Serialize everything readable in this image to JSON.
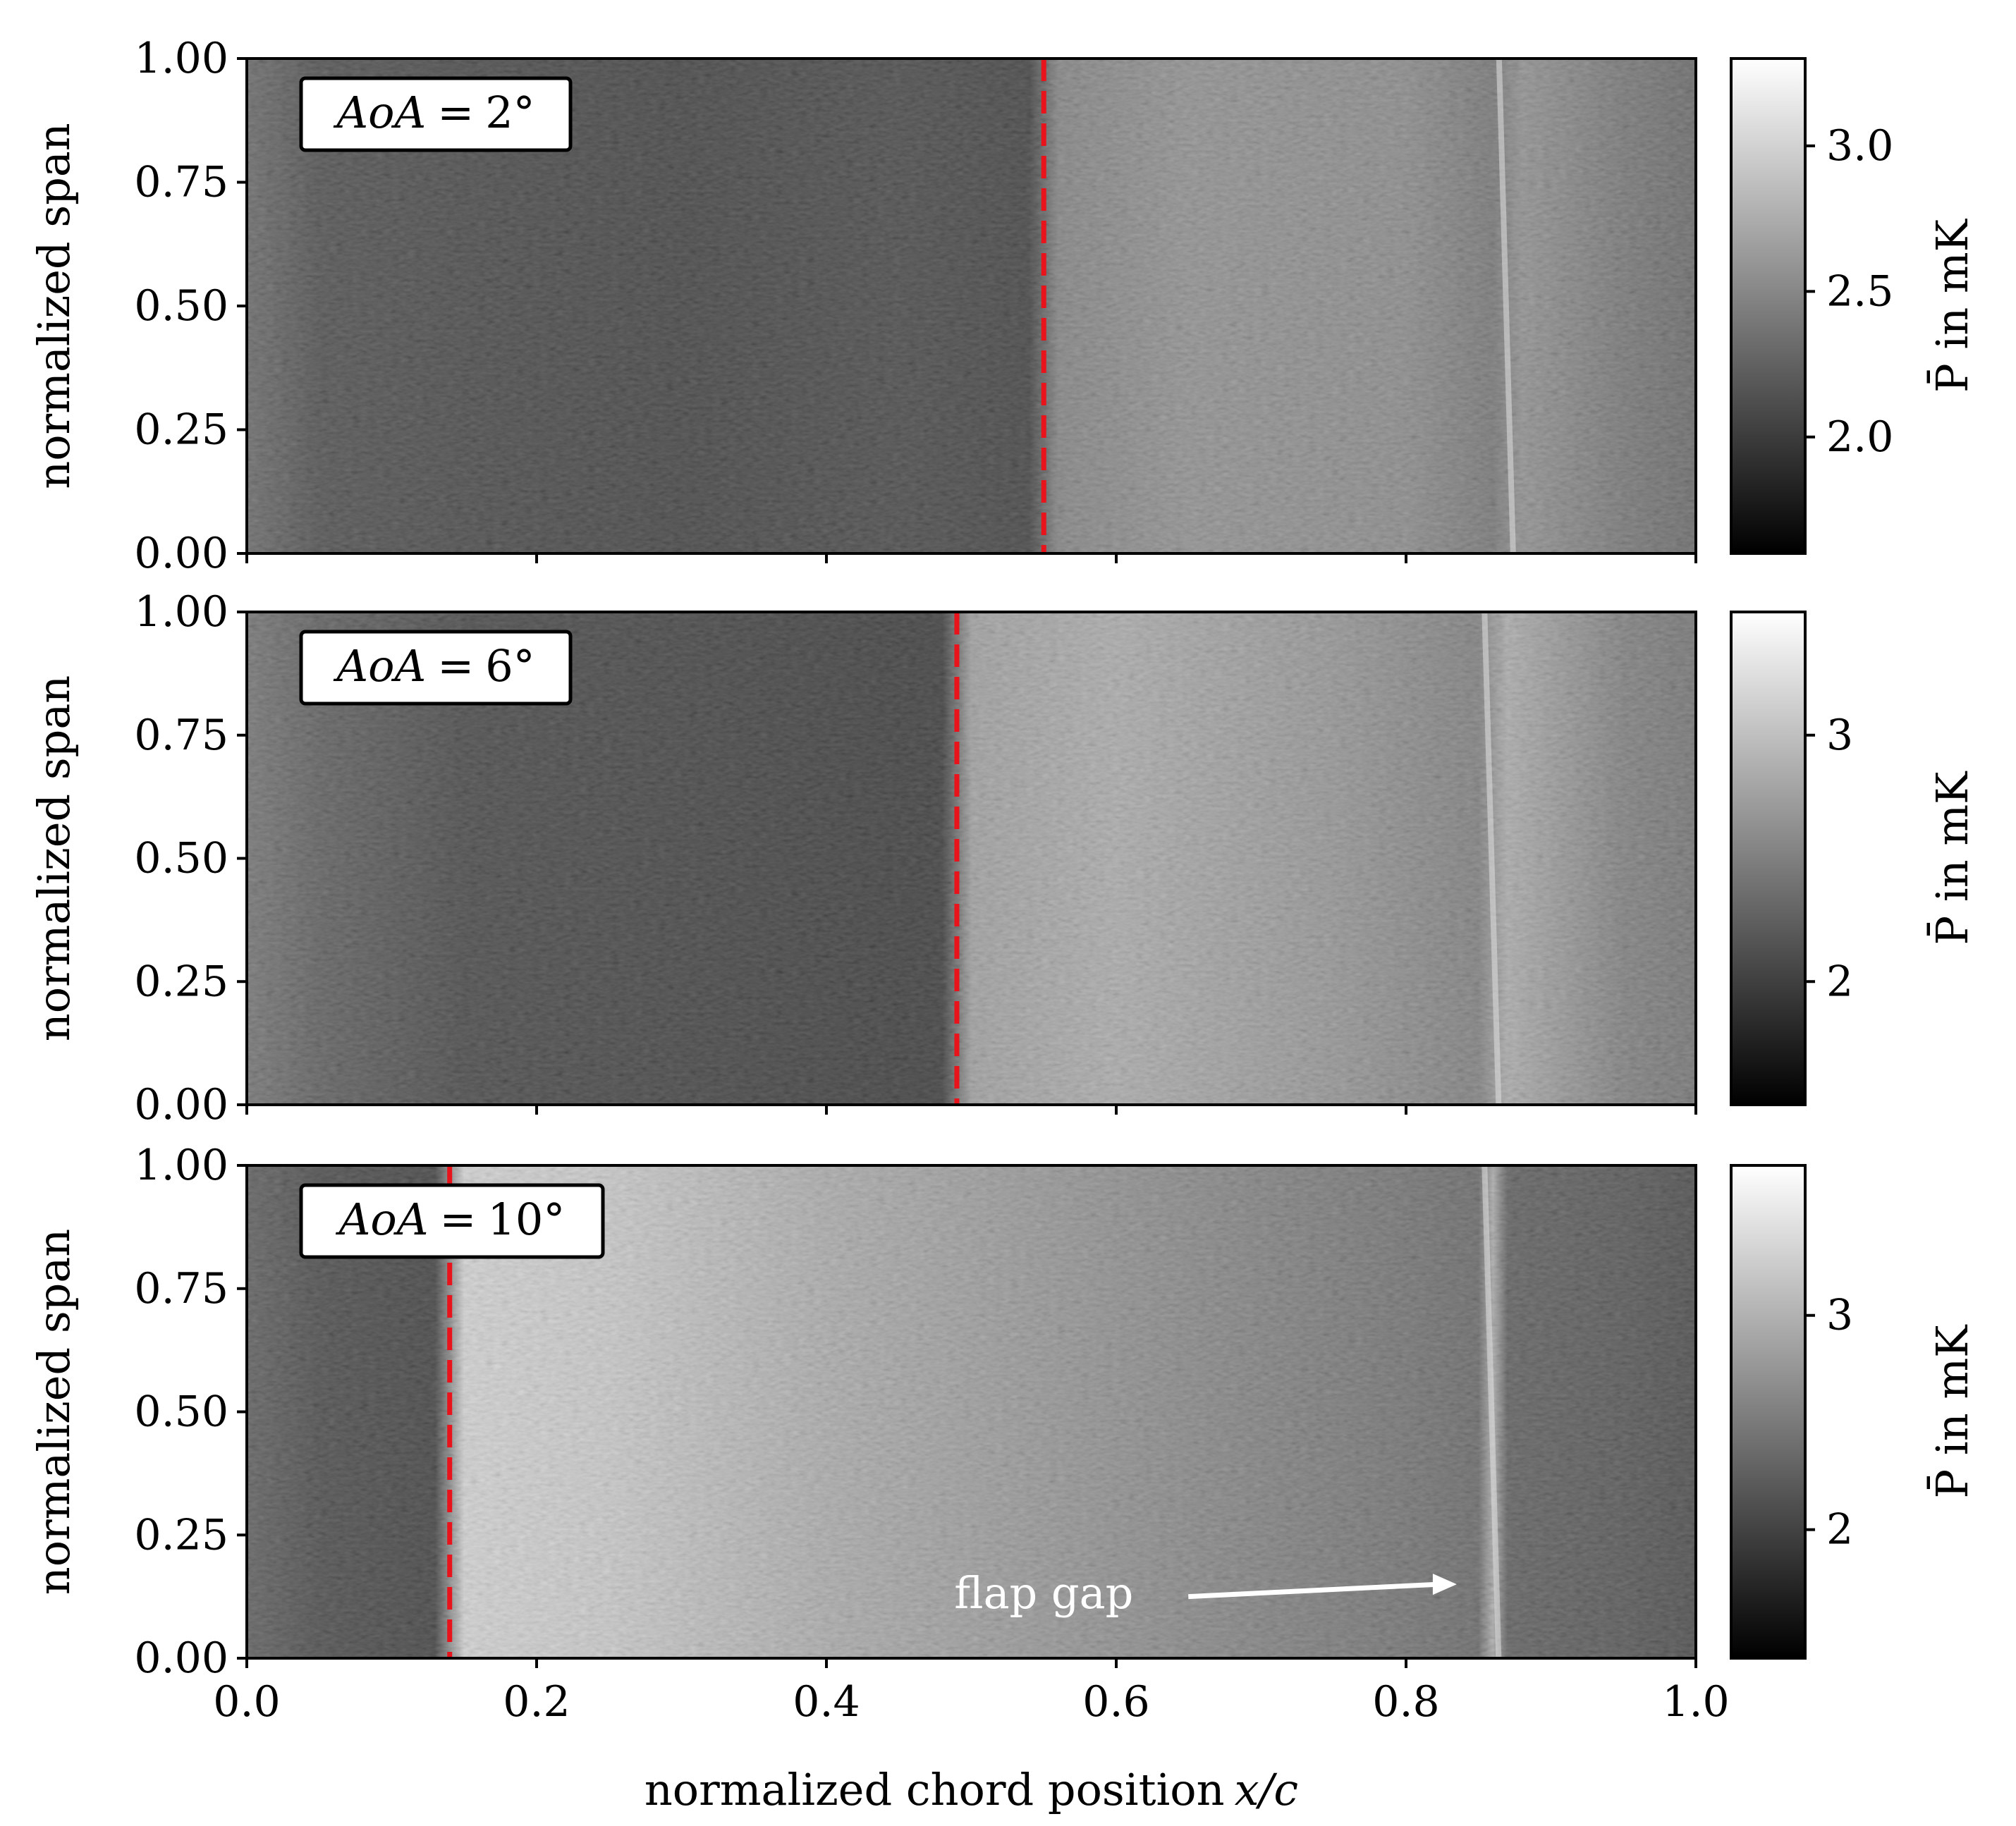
{
  "chart_data": [
    {
      "type": "heatmap",
      "colormap": "gray",
      "annotation": "AoA = 2°",
      "annotation_parts": [
        "AoA",
        "=",
        "2°"
      ],
      "ylabel": "normalized span",
      "xlabel": "",
      "xlim": [
        0.0,
        1.0
      ],
      "ylim": [
        0.0,
        1.0
      ],
      "yticks": [
        "0.00",
        "0.25",
        "0.50",
        "0.75",
        "1.00"
      ],
      "yticks_values": [
        0.0,
        0.25,
        0.5,
        0.75,
        1.0
      ],
      "xticks_values": [
        0.0,
        0.2,
        0.4,
        0.6,
        0.8,
        1.0
      ],
      "xtick_labels_shown": false,
      "transition_x": 0.55,
      "transition_line": {
        "style": "dashed",
        "color": "#e8131b"
      },
      "flap_gap_x": 0.87,
      "intensity_profile": {
        "x": [
          0.0,
          0.05,
          0.15,
          0.3,
          0.45,
          0.54,
          0.56,
          0.65,
          0.8,
          0.86,
          0.88,
          0.95,
          1.0
        ],
        "value": [
          2.2,
          2.0,
          1.95,
          1.9,
          1.95,
          1.9,
          2.4,
          2.5,
          2.45,
          2.3,
          2.5,
          2.3,
          2.2
        ]
      },
      "colorbar": {
        "label": "P̄ in mK",
        "ticks": [
          "2.0",
          "2.5",
          "3.0"
        ],
        "tick_values": [
          2.0,
          2.5,
          3.0
        ],
        "range": [
          1.6,
          3.3
        ]
      }
    },
    {
      "type": "heatmap",
      "colormap": "gray",
      "annotation": "AoA = 6°",
      "annotation_parts": [
        "AoA",
        "=",
        "6°"
      ],
      "ylabel": "normalized span",
      "xlabel": "",
      "xlim": [
        0.0,
        1.0
      ],
      "ylim": [
        0.0,
        1.0
      ],
      "yticks": [
        "0.00",
        "0.25",
        "0.50",
        "0.75",
        "1.00"
      ],
      "yticks_values": [
        0.0,
        0.25,
        0.5,
        0.75,
        1.0
      ],
      "xticks_values": [
        0.0,
        0.2,
        0.4,
        0.6,
        0.8,
        1.0
      ],
      "xtick_labels_shown": false,
      "transition_x": 0.49,
      "transition_line": {
        "style": "dashed",
        "color": "#e8131b"
      },
      "flap_gap_x": 0.86,
      "intensity_profile": {
        "x": [
          0.0,
          0.05,
          0.15,
          0.3,
          0.45,
          0.48,
          0.5,
          0.6,
          0.75,
          0.85,
          0.87,
          0.95,
          1.0
        ],
        "value": [
          2.3,
          2.1,
          1.9,
          1.85,
          1.8,
          1.8,
          2.7,
          2.8,
          2.6,
          2.4,
          2.8,
          2.4,
          2.3
        ]
      },
      "colorbar": {
        "label": "P̄ in mK",
        "ticks": [
          "2",
          "3"
        ],
        "tick_values": [
          2,
          3
        ],
        "range": [
          1.5,
          3.5
        ]
      }
    },
    {
      "type": "heatmap",
      "colormap": "gray",
      "annotation": "AoA = 10°",
      "annotation_parts": [
        "AoA",
        "=",
        "10°"
      ],
      "ylabel": "normalized span",
      "xlabel": "normalized chord position x/c",
      "xlabel_parts": [
        "normalized chord position",
        "x/c"
      ],
      "xlim": [
        0.0,
        1.0
      ],
      "ylim": [
        0.0,
        1.0
      ],
      "xticks": [
        "0.0",
        "0.2",
        "0.4",
        "0.6",
        "0.8",
        "1.0"
      ],
      "xticks_values": [
        0.0,
        0.2,
        0.4,
        0.6,
        0.8,
        1.0
      ],
      "yticks": [
        "0.00",
        "0.25",
        "0.50",
        "0.75",
        "1.00"
      ],
      "yticks_values": [
        0.0,
        0.25,
        0.5,
        0.75,
        1.0
      ],
      "transition_x": 0.14,
      "transition_line": {
        "style": "dashed",
        "color": "#e8131b"
      },
      "flap_gap_x": 0.86,
      "intensity_profile": {
        "x": [
          0.0,
          0.05,
          0.13,
          0.15,
          0.25,
          0.4,
          0.6,
          0.8,
          0.85,
          0.86,
          0.87,
          0.95,
          1.0
        ],
        "value": [
          2.1,
          1.9,
          1.8,
          3.3,
          3.2,
          2.9,
          2.6,
          2.3,
          2.2,
          2.9,
          2.1,
          2.0,
          1.9
        ]
      },
      "text_annotation": {
        "text": "flap gap",
        "color": "#ffffff",
        "x": 0.55,
        "y": 0.13,
        "arrow_to": [
          0.835,
          0.15
        ]
      },
      "colorbar": {
        "label": "P̄ in mK",
        "ticks": [
          "2",
          "3"
        ],
        "tick_values": [
          2,
          3
        ],
        "range": [
          1.4,
          3.7
        ]
      }
    }
  ]
}
